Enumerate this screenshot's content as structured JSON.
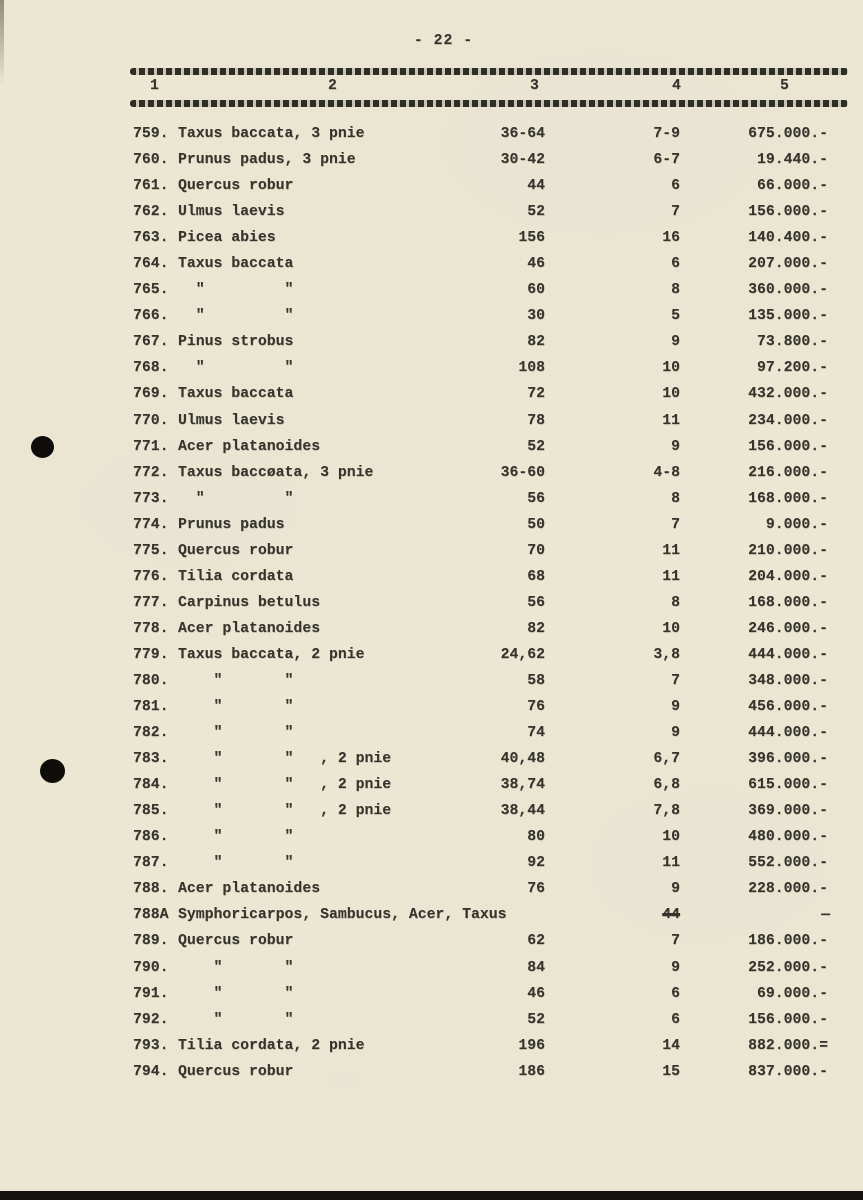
{
  "page": {
    "number_label": "- 22 -"
  },
  "table": {
    "column_headers": [
      "1",
      "2",
      "3",
      "4",
      "5"
    ],
    "rows": [
      {
        "num": "759.",
        "name": "Taxus baccata, 3 pnie",
        "dim": "36-64",
        "qty": "7-9",
        "price": "675.000.-"
      },
      {
        "num": "760.",
        "name": "Prunus padus, 3 pnie",
        "dim": "30-42",
        "qty": "6-7",
        "price": "19.440.-"
      },
      {
        "num": "761.",
        "name": "Quercus robur",
        "dim": "44",
        "qty": "6",
        "price": "66.000.-"
      },
      {
        "num": "762.",
        "name": "Ulmus laevis",
        "dim": "52",
        "qty": "7",
        "price": "156.000.-"
      },
      {
        "num": "763.",
        "name": "Picea abies",
        "dim": "156",
        "qty": "16",
        "price": "140.400.-"
      },
      {
        "num": "764.",
        "name": "Taxus baccata",
        "dim": "46",
        "qty": "6",
        "price": "207.000.-"
      },
      {
        "num": "765.",
        "name": "  \"         \"",
        "dim": "60",
        "qty": "8",
        "price": "360.000.-"
      },
      {
        "num": "766.",
        "name": "  \"         \"",
        "dim": "30",
        "qty": "5",
        "price": "135.000.-"
      },
      {
        "num": "767.",
        "name": "Pinus strobus",
        "dim": "82",
        "qty": "9",
        "price": "73.800.-"
      },
      {
        "num": "768.",
        "name": "  \"         \"",
        "dim": "108",
        "qty": "10",
        "price": "97.200.-"
      },
      {
        "num": "769.",
        "name": "Taxus baccata",
        "dim": "72",
        "qty": "10",
        "price": "432.000.-"
      },
      {
        "num": "770.",
        "name": "Ulmus laevis",
        "dim": "78",
        "qty": "11",
        "price": "234.000.-"
      },
      {
        "num": "771.",
        "name": "Acer platanoides",
        "dim": "52",
        "qty": "9",
        "price": "156.000.-"
      },
      {
        "num": "772.",
        "name": "Taxus baccøata, 3 pnie",
        "dim": "36-60",
        "qty": "4-8",
        "price": "216.000.-"
      },
      {
        "num": "773.",
        "name": "  \"         \"",
        "dim": "56",
        "qty": "8",
        "price": "168.000.-"
      },
      {
        "num": "774.",
        "name": "Prunus padus",
        "dim": "50",
        "qty": "7",
        "price": "9.000.-"
      },
      {
        "num": "775.",
        "name": "Quercus robur",
        "dim": "70",
        "qty": "11",
        "price": "210.000.-"
      },
      {
        "num": "776.",
        "name": "Tilia cordata",
        "dim": "68",
        "qty": "11",
        "price": "204.000.-"
      },
      {
        "num": "777.",
        "name": "Carpinus betulus",
        "dim": "56",
        "qty": "8",
        "price": "168.000.-"
      },
      {
        "num": "778.",
        "name": "Acer platanoides",
        "dim": "82",
        "qty": "10",
        "price": "246.000.-"
      },
      {
        "num": "779.",
        "name": "Taxus baccata, 2 pnie",
        "dim": "24,62",
        "qty": "3,8",
        "price": "444.000.-"
      },
      {
        "num": "780.",
        "name": "    \"       \"",
        "dim": "58",
        "qty": "7",
        "price": "348.000.-"
      },
      {
        "num": "781.",
        "name": "    \"       \"",
        "dim": "76",
        "qty": "9",
        "price": "456.000.-"
      },
      {
        "num": "782.",
        "name": "    \"       \"",
        "dim": "74",
        "qty": "9",
        "price": "444.000.-"
      },
      {
        "num": "783.",
        "name": "    \"       \"   , 2 pnie",
        "dim": "40,48",
        "qty": "6,7",
        "price": "396.000.-"
      },
      {
        "num": "784.",
        "name": "    \"       \"   , 2 pnie",
        "dim": "38,74",
        "qty": "6,8",
        "price": "615.000.-"
      },
      {
        "num": "785.",
        "name": "    \"       \"   , 2 pnie",
        "dim": "38,44",
        "qty": "7,8",
        "price": "369.000.-"
      },
      {
        "num": "786.",
        "name": "    \"       \"",
        "dim": "80",
        "qty": "10",
        "price": "480.000.-"
      },
      {
        "num": "787.",
        "name": "    \"       \"",
        "dim": "92",
        "qty": "11",
        "price": "552.000.-"
      },
      {
        "num": "788.",
        "name": "Acer platanoides",
        "dim": "76",
        "qty": "9",
        "price": "228.000.-"
      },
      {
        "num": "788A",
        "name": "Symphoricarpos, Sambucus, Acer, Taxus",
        "dim": "",
        "qty": "44",
        "price": "—",
        "qty_struck": true,
        "offset": true
      },
      {
        "num": "789.",
        "name": "Quercus robur",
        "dim": "62",
        "qty": "7",
        "price": "186.000.-"
      },
      {
        "num": "790.",
        "name": "    \"       \"",
        "dim": "84",
        "qty": "9",
        "price": "252.000.-"
      },
      {
        "num": "791.",
        "name": "    \"       \"",
        "dim": "46",
        "qty": "6",
        "price": "69.000.-"
      },
      {
        "num": "792.",
        "name": "    \"       \"",
        "dim": "52",
        "qty": "6",
        "price": "156.000.-"
      },
      {
        "num": "793.",
        "name": "Tilia cordata, 2 pnie",
        "dim": "196",
        "qty": "14",
        "price": "882.000.="
      },
      {
        "num": "794.",
        "name": "Quercus robur",
        "dim": "186",
        "qty": "15",
        "price": "837.000.-"
      }
    ]
  }
}
